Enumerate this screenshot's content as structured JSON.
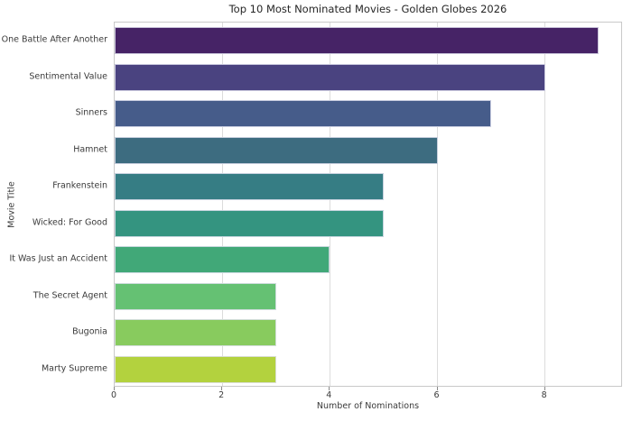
{
  "chart_data": {
    "type": "bar",
    "orientation": "horizontal",
    "title": "Top 10 Most Nominated Movies - Golden Globes 2026",
    "xlabel": "Number of Nominations",
    "ylabel": "Movie Title",
    "categories": [
      "One Battle After Another",
      "Sentimental Value",
      "Sinners",
      "Hamnet",
      "Frankenstein",
      "Wicked: For Good",
      "It Was Just an Accident",
      "The Secret Agent",
      "Bugonia",
      "Marty Supreme"
    ],
    "values": [
      9,
      8,
      7,
      6,
      5,
      5,
      4,
      3,
      3,
      3
    ],
    "bar_colors": [
      "#462366",
      "#4a4380",
      "#465c8a",
      "#3d6c80",
      "#367d84",
      "#349480",
      "#41a878",
      "#65c173",
      "#88cb5e",
      "#b3d23e"
    ],
    "xlim": [
      0,
      9.45
    ],
    "xticks": [
      0,
      2,
      4,
      6,
      8
    ],
    "grid": "vertical",
    "legend": "none",
    "style_colors": {
      "background": "#ffffff",
      "grid": "#dcdcdc",
      "spine": "#c9c9c9",
      "title_text": "#262626",
      "tick_text": "#3a3a3a",
      "bar_edge": "#e1e1ee"
    }
  }
}
